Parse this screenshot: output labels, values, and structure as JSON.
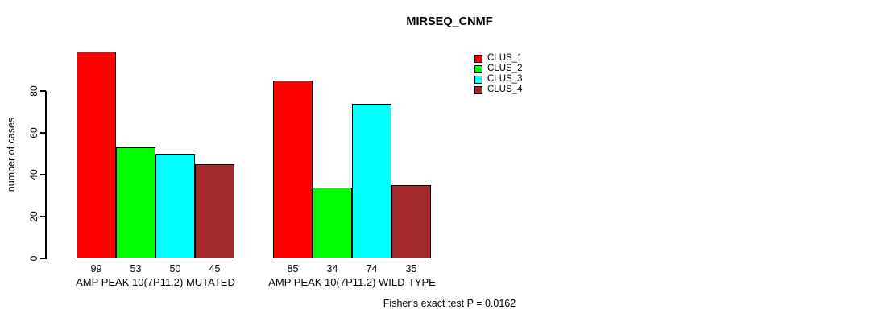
{
  "page": {
    "background": "#ffffff",
    "text_color": "#000000"
  },
  "chart_data": {
    "type": "bar",
    "title": "MIRSEQ_CNMF",
    "ylabel": "number of cases",
    "xlabel": "",
    "ylim": [
      0,
      103
    ],
    "yticks": [
      0,
      20,
      40,
      60,
      80
    ],
    "grid": false,
    "legend_position": "top-right",
    "categories": [
      "AMP PEAK 10(7P11.2) MUTATED",
      "AMP PEAK 10(7P11.2) WILD-TYPE"
    ],
    "series": [
      {
        "name": "CLUS_1",
        "color": "#FF0000",
        "values": [
          99,
          85
        ]
      },
      {
        "name": "CLUS_2",
        "color": "#00FF00",
        "values": [
          53,
          34
        ]
      },
      {
        "name": "CLUS_3",
        "color": "#00FFFF",
        "values": [
          50,
          74
        ]
      },
      {
        "name": "CLUS_4",
        "color": "#A52A2A",
        "values": [
          45,
          35
        ]
      }
    ],
    "bar_value_labels": [
      [
        99,
        53,
        50,
        45
      ],
      [
        85,
        34,
        74,
        35
      ]
    ],
    "annotation": "Fisher's exact test P = 0.0162"
  }
}
